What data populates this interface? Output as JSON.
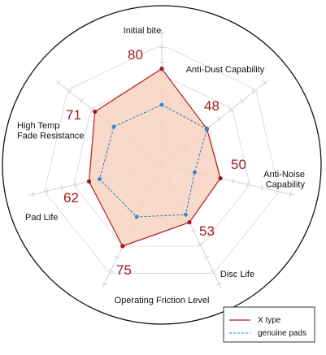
{
  "chart_data": {
    "type": "radar",
    "axes": [
      "Initial bite",
      "Anti-Dust Capability",
      "Anti-Noise\nCapability",
      "Disc Life",
      "Operating Friction Level",
      "Pad Life",
      "High Temp\nFade Resistance"
    ],
    "series": [
      {
        "name": "X type",
        "values": [
          80,
          48,
          50,
          53,
          75,
          62,
          71
        ],
        "line_color": "#b81b22",
        "fill_color": "#f8d2c0",
        "point_color": "#9e1a20",
        "line_style": "solid"
      },
      {
        "name": "genuine pads",
        "values": [
          50,
          48,
          28,
          46,
          48,
          53,
          51
        ],
        "line_color": "#1a85a8",
        "point_color": "#2e86d8",
        "line_style": "dashed"
      }
    ],
    "value_labels": [
      "80",
      "48",
      "50",
      "53",
      "75",
      "62",
      "71"
    ],
    "value_label_color": "#a01a1e",
    "grid": true,
    "legend": {
      "position": "bottom-right"
    }
  }
}
